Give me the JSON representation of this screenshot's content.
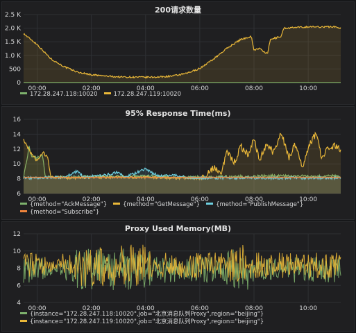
{
  "chart_data": [
    {
      "type": "area",
      "title": "200请求数量",
      "x_ticks": [
        "00:00",
        "02:00",
        "04:00",
        "06:00",
        "08:00",
        "10:00"
      ],
      "xlim": [
        -0.5,
        11.2
      ],
      "y_ticks": [
        "0",
        "500",
        "1.0 K",
        "1.5 K",
        "2.0 K",
        "2.5 K"
      ],
      "ylim": [
        0,
        2500
      ],
      "grid": true,
      "legend": "bottom",
      "series": [
        {
          "name": "172.28.247.118:10020",
          "color": "#7eb26d",
          "x": [
            -0.5,
            11.2
          ],
          "values": [
            0,
            0
          ]
        },
        {
          "name": "172.28.247.119:10020",
          "color": "#eab839",
          "x": [
            -0.5,
            0,
            0.5,
            1,
            1.5,
            2,
            2.5,
            3,
            3.5,
            4,
            4.5,
            5,
            5.5,
            6,
            6.5,
            7,
            7.5,
            7.9,
            8.0,
            8.2,
            8.5,
            8.6,
            9.0,
            9.1,
            9.5,
            10,
            10.5,
            11,
            11.2
          ],
          "values": [
            1800,
            1400,
            880,
            580,
            380,
            290,
            240,
            210,
            200,
            195,
            205,
            240,
            330,
            520,
            860,
            1260,
            1580,
            1700,
            1200,
            1250,
            1050,
            1580,
            1700,
            2000,
            2020,
            2050,
            2050,
            2050,
            2000
          ]
        }
      ]
    },
    {
      "type": "area",
      "title": "95% Response Time(ms)",
      "x_ticks": [
        "00:00",
        "02:00",
        "04:00",
        "06:00",
        "08:00",
        "10:00"
      ],
      "xlim": [
        -0.5,
        11.2
      ],
      "y_ticks": [
        "6",
        "8",
        "10",
        "12",
        "14",
        "16"
      ],
      "ylim": [
        6,
        16
      ],
      "grid": true,
      "legend": "bottom",
      "series": [
        {
          "name": "{method=\"AckMessage\"}",
          "color": "#7eb26d",
          "x": [
            -0.5,
            -0.3,
            -0.2,
            0,
            0.2,
            0.3,
            0.5,
            1,
            2,
            3,
            4,
            4.5,
            5,
            5.5,
            6,
            6.5,
            7,
            7.5,
            8,
            8.5,
            9,
            9.5,
            10,
            10.5,
            11,
            11.2
          ],
          "values": [
            8.2,
            12.3,
            11,
            10.8,
            11.2,
            8.2,
            8.2,
            8.2,
            8.3,
            8.3,
            8.4,
            8.3,
            8.2,
            8.2,
            8.2,
            8.2,
            8.3,
            8.3,
            8.3,
            8.4,
            8.4,
            8.3,
            8.4,
            8.3,
            8.4,
            8.3
          ]
        },
        {
          "name": "{method=\"GetMessage\"}",
          "color": "#eab839",
          "x": [
            -0.5,
            -0.4,
            -0.2,
            0,
            0.2,
            0.4,
            0.5,
            1,
            2,
            3,
            4,
            5,
            6,
            6.2,
            6.5,
            6.8,
            7,
            7.3,
            7.5,
            7.8,
            8,
            8.2,
            8.5,
            8.7,
            9,
            9.3,
            9.5,
            9.8,
            10,
            10.3,
            10.5,
            10.7,
            11,
            11.2
          ],
          "values": [
            13.2,
            12.5,
            11.3,
            10.4,
            11.6,
            10.8,
            8.2,
            8.1,
            8.2,
            8.2,
            8.2,
            8.1,
            8.1,
            8.3,
            9.5,
            8.9,
            11.5,
            10.2,
            12.4,
            11.2,
            13.4,
            10.5,
            12.8,
            11.6,
            14.2,
            10.8,
            12.5,
            9.6,
            12.2,
            14.2,
            10.6,
            12,
            12.5,
            11.8
          ]
        },
        {
          "name": "{method=\"PublishMessage\"}",
          "color": "#6ed0e0",
          "x": [
            -0.5,
            0,
            1,
            1.5,
            1.7,
            2,
            2.5,
            3,
            3.2,
            3.5,
            4,
            4.5,
            5,
            5.5,
            6,
            7,
            8,
            9,
            10,
            11.2
          ],
          "values": [
            8.1,
            8.1,
            8.2,
            9.1,
            8.2,
            8.3,
            8.5,
            8.9,
            8.2,
            8.6,
            9.3,
            8.3,
            8.5,
            8.2,
            8.1,
            8.1,
            8.1,
            8.1,
            8.1,
            8.1
          ]
        },
        {
          "name": "{method=\"Subscribe\"}",
          "color": "#ef843c",
          "x": [
            -0.5,
            11.2
          ],
          "values": [
            8.2,
            8.2
          ]
        }
      ]
    },
    {
      "type": "line",
      "title": "Proxy Used Memory(MB)",
      "x_ticks": [
        "00:00",
        "02:00",
        "04:00",
        "06:00",
        "08:00",
        "10:00"
      ],
      "xlim": [
        -0.5,
        11.2
      ],
      "y_ticks": [
        "4",
        "6",
        "8",
        "10",
        "12"
      ],
      "ylim": [
        4,
        12
      ],
      "grid": true,
      "legend": "bottom",
      "band": {
        "min": 5.5,
        "max": 10.5
      },
      "series": [
        {
          "name": "{instance=\"172.28.247.118:10020\",job=\"北京消息队列Proxy\",region=\"beijing\"}",
          "color": "#7eb26d"
        },
        {
          "name": "{instance=\"172.28.247.119:10020\",job=\"北京消息队列Proxy\",region=\"beijing\"}",
          "color": "#eab839"
        }
      ]
    }
  ]
}
